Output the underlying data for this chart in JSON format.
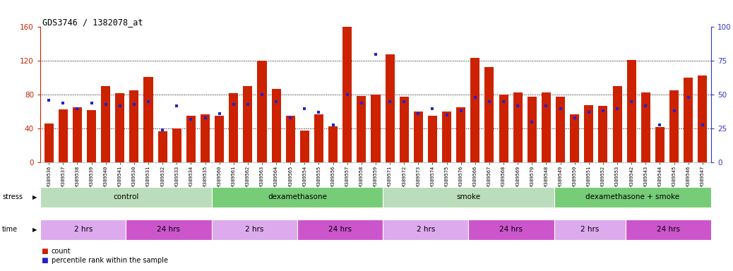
{
  "title": "GDS3746 / 1382078_at",
  "samples": [
    "GSM389536",
    "GSM389537",
    "GSM389538",
    "GSM389539",
    "GSM389540",
    "GSM389541",
    "GSM389530",
    "GSM389531",
    "GSM389532",
    "GSM389533",
    "GSM389534",
    "GSM389535",
    "GSM389560",
    "GSM389561",
    "GSM389562",
    "GSM389563",
    "GSM389564",
    "GSM389565",
    "GSM389554",
    "GSM389555",
    "GSM389556",
    "GSM389557",
    "GSM389558",
    "GSM389559",
    "GSM389571",
    "GSM389572",
    "GSM389573",
    "GSM389574",
    "GSM389575",
    "GSM389576",
    "GSM389566",
    "GSM389567",
    "GSM389568",
    "GSM389569",
    "GSM389570",
    "GSM389548",
    "GSM389549",
    "GSM389550",
    "GSM389551",
    "GSM389552",
    "GSM389553",
    "GSM389542",
    "GSM389543",
    "GSM389544",
    "GSM389545",
    "GSM389546",
    "GSM389547"
  ],
  "count_values": [
    46,
    63,
    65,
    62,
    90,
    82,
    85,
    101,
    37,
    40,
    55,
    57,
    55,
    82,
    90,
    120,
    87,
    55,
    38,
    57,
    43,
    160,
    79,
    80,
    128,
    78,
    60,
    55,
    60,
    65,
    124,
    113,
    80,
    83,
    78,
    83,
    78,
    57,
    68,
    67,
    90,
    121,
    83,
    42,
    85,
    100,
    103
  ],
  "percentile_values": [
    46,
    44,
    40,
    44,
    43,
    42,
    43,
    45,
    24,
    42,
    32,
    33,
    36,
    43,
    43,
    50,
    45,
    33,
    40,
    37,
    28,
    50,
    44,
    80,
    45,
    45,
    36,
    40,
    35,
    38,
    48,
    45,
    45,
    42,
    30,
    42,
    40,
    33,
    37,
    38,
    40,
    45,
    42,
    28,
    38,
    48,
    28
  ],
  "bar_color": "#CC2200",
  "dot_color": "#2222CC",
  "ylim_left": [
    0,
    160
  ],
  "ylim_right": [
    0,
    100
  ],
  "yticks_left": [
    0,
    40,
    80,
    120,
    160
  ],
  "yticks_right": [
    0,
    25,
    50,
    75,
    100
  ],
  "stress_groups": [
    {
      "label": "control",
      "start": 0,
      "end": 12,
      "color": "#BBDDBB"
    },
    {
      "label": "dexamethasone",
      "start": 12,
      "end": 24,
      "color": "#77CC77"
    },
    {
      "label": "smoke",
      "start": 24,
      "end": 36,
      "color": "#BBDDBB"
    },
    {
      "label": "dexamethasone + smoke",
      "start": 36,
      "end": 47,
      "color": "#77CC77"
    }
  ],
  "time_groups": [
    {
      "label": "2 hrs",
      "start": 0,
      "end": 6,
      "color": "#DDAAEE"
    },
    {
      "label": "24 hrs",
      "start": 6,
      "end": 12,
      "color": "#CC55CC"
    },
    {
      "label": "2 hrs",
      "start": 12,
      "end": 18,
      "color": "#DDAAEE"
    },
    {
      "label": "24 hrs",
      "start": 18,
      "end": 24,
      "color": "#CC55CC"
    },
    {
      "label": "2 hrs",
      "start": 24,
      "end": 30,
      "color": "#DDAAEE"
    },
    {
      "label": "24 hrs",
      "start": 30,
      "end": 36,
      "color": "#CC55CC"
    },
    {
      "label": "2 hrs",
      "start": 36,
      "end": 41,
      "color": "#DDAAEE"
    },
    {
      "label": "24 hrs",
      "start": 41,
      "end": 47,
      "color": "#CC55CC"
    }
  ],
  "bg_color": "#FFFFFF",
  "left_axis_color": "#CC2200",
  "right_axis_color": "#3333CC"
}
